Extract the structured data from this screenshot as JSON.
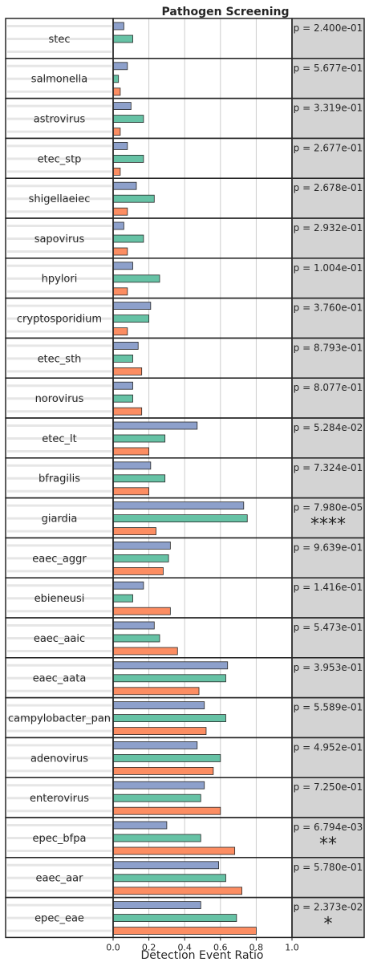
{
  "chart_data": {
    "type": "bar",
    "orientation": "horizontal",
    "title": "Pathogen Screening",
    "xlabel": "Detection Event Ratio",
    "xlim": [
      0,
      1
    ],
    "xticks": [
      "0.0",
      "0.2",
      "0.4",
      "0.6",
      "0.8",
      "1.0"
    ],
    "grid": true,
    "categories": [
      "stec",
      "salmonella",
      "astrovirus",
      "etec_stp",
      "shigellaeiec",
      "sapovirus",
      "hpylori",
      "cryptosporidium",
      "etec_sth",
      "norovirus",
      "etec_lt",
      "bfragilis",
      "giardia",
      "eaec_aggr",
      "ebieneusi",
      "eaec_aaic",
      "eaec_aata",
      "campylobacter_pan",
      "adenovirus",
      "enterovirus",
      "epec_bfpa",
      "eaec_aar",
      "epec_eae"
    ],
    "series": [
      {
        "color": "#8da0cb",
        "values": [
          0.06,
          0.08,
          0.1,
          0.08,
          0.13,
          0.06,
          0.11,
          0.21,
          0.14,
          0.11,
          0.47,
          0.21,
          0.73,
          0.32,
          0.17,
          0.23,
          0.64,
          0.51,
          0.47,
          0.51,
          0.3,
          0.59,
          0.49
        ]
      },
      {
        "color": "#66c2a5",
        "values": [
          0.11,
          0.03,
          0.17,
          0.17,
          0.23,
          0.17,
          0.26,
          0.2,
          0.11,
          0.11,
          0.29,
          0.29,
          0.75,
          0.31,
          0.11,
          0.26,
          0.63,
          0.63,
          0.6,
          0.49,
          0.49,
          0.63,
          0.69
        ]
      },
      {
        "color": "#fc8d62",
        "values": [
          0.0,
          0.04,
          0.04,
          0.04,
          0.08,
          0.08,
          0.08,
          0.08,
          0.16,
          0.16,
          0.2,
          0.2,
          0.24,
          0.28,
          0.32,
          0.36,
          0.48,
          0.52,
          0.56,
          0.6,
          0.68,
          0.72,
          0.8
        ]
      }
    ],
    "p_values": [
      "p = 2.400e-01",
      "p = 5.677e-01",
      "p = 3.319e-01",
      "p = 2.677e-01",
      "p = 2.678e-01",
      "p = 2.932e-01",
      "p = 1.004e-01",
      "p = 3.760e-01",
      "p = 8.793e-01",
      "p = 8.077e-01",
      "p = 5.284e-02",
      "p = 7.324e-01",
      "p = 7.980e-05",
      "p = 9.639e-01",
      "p = 1.416e-01",
      "p = 5.473e-01",
      "p = 3.953e-01",
      "p = 5.589e-01",
      "p = 4.952e-01",
      "p = 7.250e-01",
      "p = 6.794e-03",
      "p = 5.780e-01",
      "p = 2.373e-02"
    ],
    "significance": [
      "",
      "",
      "",
      "",
      "",
      "",
      "",
      "",
      "",
      "",
      "",
      "",
      "****",
      "",
      "",
      "",
      "",
      "",
      "",
      "",
      "**",
      "",
      "*"
    ],
    "colors": {
      "axis": "#262626",
      "grid": "#cccccc",
      "stats_panel": "#d3d3d3",
      "label_stripe": "#e6e6e6"
    }
  }
}
